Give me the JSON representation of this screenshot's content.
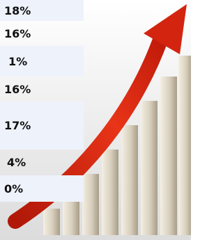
{
  "rows": [
    "18%",
    "16%",
    "1%",
    "16%",
    "17%",
    "4%",
    "0%"
  ]
}
